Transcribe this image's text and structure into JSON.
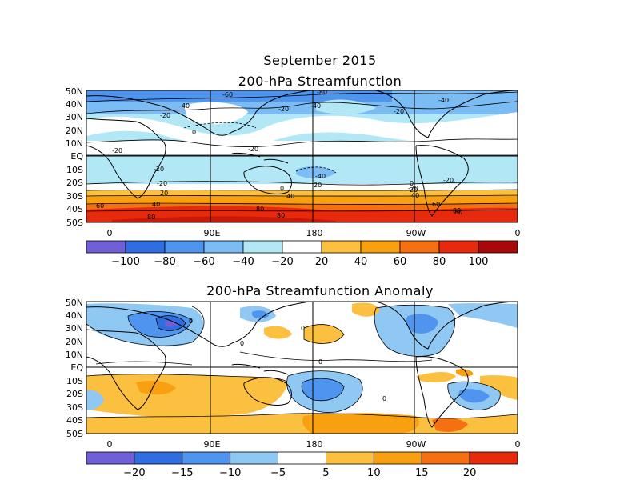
{
  "title": "September 2015",
  "panel1": {
    "title": "200-hPa Streamfunction",
    "lat_labels": [
      "50N",
      "40N",
      "30N",
      "20N",
      "10N",
      "EQ",
      "10S",
      "20S",
      "30S",
      "40S",
      "50S"
    ],
    "lon_labels": [
      "0",
      "90E",
      "180",
      "90W",
      "0"
    ],
    "colorbar": {
      "colors": [
        "#7060d8",
        "#2f6ee0",
        "#4f94ee",
        "#7cbcf4",
        "#b2e8f6",
        "#ffffff",
        "#fcc040",
        "#f8a010",
        "#f47010",
        "#e82a0c",
        "#a80808"
      ],
      "labels": [
        "-100",
        "-80",
        "-60",
        "-40",
        "-20",
        "20",
        "40",
        "60",
        "80",
        "100"
      ]
    },
    "contour_labels": [
      "-60",
      "-80",
      "-40",
      "-40",
      "-40",
      "-20",
      "-20",
      "-20",
      "0",
      "-20",
      "-20",
      "-20",
      "-20",
      "-40",
      "-20",
      "0",
      "20",
      "40",
      "60",
      "80",
      "20",
      "40",
      "80",
      "60",
      "80",
      "-20",
      "0",
      "20",
      "40",
      "60",
      "80"
    ]
  },
  "panel2": {
    "title": "200-hPa Streamfunction Anomaly",
    "lat_labels": [
      "50N",
      "40N",
      "30N",
      "20N",
      "10N",
      "EQ",
      "10S",
      "20S",
      "30S",
      "40S",
      "50S"
    ],
    "lon_labels": [
      "0",
      "90E",
      "180",
      "90W",
      "0"
    ],
    "colorbar": {
      "colors": [
        "#7060d8",
        "#2f6ee0",
        "#4f94ee",
        "#90c8f4",
        "#ffffff",
        "#fcc040",
        "#f8a010",
        "#f47010",
        "#e82a0c"
      ],
      "labels": [
        "-20",
        "-15",
        "-10",
        "-5",
        "5",
        "10",
        "15",
        "20"
      ]
    },
    "contour_labels": [
      "0",
      "0",
      "0",
      "0",
      "0"
    ]
  }
}
